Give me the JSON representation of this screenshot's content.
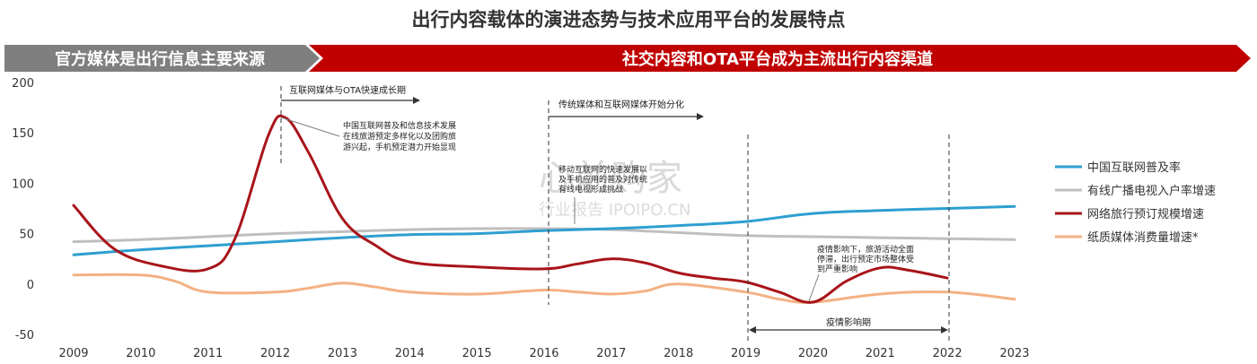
{
  "title": "出行内容载体的演进态势与技术应用平台的发展特点",
  "banner": {
    "left": "官方媒体是出行信息主要来源",
    "right": "社交内容和OTA平台成为主流出行内容渠道",
    "left_color": "#7f7f7f",
    "right_color": "#c00000"
  },
  "watermark": {
    "main": "心前购家",
    "sub": "行业报告 IPOIPO.CN"
  },
  "chart_data": {
    "type": "line",
    "x": [
      2009,
      2010,
      2011,
      2012,
      2013,
      2014,
      2015,
      2016,
      2017,
      2018,
      2019,
      2020,
      2021,
      2022,
      2023
    ],
    "ylim": [
      -50,
      200
    ],
    "y_ticks": [
      200,
      150,
      100,
      50,
      0,
      -50
    ],
    "grid": false,
    "legend_position": "right",
    "series": [
      {
        "name": "中国互联网普及率",
        "color": "#2e9fd1",
        "x": [
          2009,
          2010,
          2011,
          2012,
          2013,
          2014,
          2015,
          2016,
          2017,
          2018,
          2019,
          2020,
          2021,
          2022,
          2023
        ],
        "values": [
          29,
          34,
          38,
          42,
          46,
          49,
          50,
          53,
          55,
          58,
          62,
          70,
          73,
          75,
          77
        ]
      },
      {
        "name": "有线广播电视入户率增速",
        "color": "#bfbfbf",
        "x": [
          2009,
          2010,
          2011,
          2012,
          2013,
          2014,
          2015,
          2016,
          2017,
          2018,
          2019,
          2020,
          2021,
          2022,
          2023
        ],
        "values": [
          42,
          44,
          47,
          50,
          52,
          54,
          55,
          55,
          54,
          51,
          48,
          47,
          46,
          45,
          44
        ]
      },
      {
        "name": "网络旅行预订规模增速",
        "color": "#a8141a",
        "x": [
          2009,
          2009.6,
          2010.3,
          2011,
          2011.4,
          2011.9,
          2012.15,
          2012.5,
          2013,
          2013.5,
          2014,
          2015,
          2016,
          2016.5,
          2017,
          2017.5,
          2018,
          2018.5,
          2019,
          2019.5,
          2020,
          2020.5,
          2021,
          2021.4,
          2022
        ],
        "values": [
          78,
          35,
          18,
          15,
          45,
          148,
          165,
          130,
          65,
          38,
          22,
          17,
          15,
          20,
          25,
          21,
          11,
          6,
          2,
          -8,
          -18,
          3,
          16,
          14,
          6
        ]
      },
      {
        "name": "纸质媒体消费量增速*",
        "color": "#f4b183",
        "x": [
          2009,
          2010,
          2010.5,
          2011,
          2012,
          2012.5,
          2013,
          2013.5,
          2014,
          2015,
          2016,
          2016.5,
          2017,
          2017.5,
          2018,
          2019,
          2019.5,
          2020,
          2021,
          2022,
          2023
        ],
        "values": [
          9,
          9,
          3,
          -8,
          -8,
          -4,
          1,
          -3,
          -8,
          -10,
          -6,
          -8,
          -10,
          -7,
          0,
          -8,
          -15,
          -18,
          -10,
          -8,
          -15
        ]
      }
    ],
    "annotations": [
      {
        "text": "互联网媒体与OTA快速成长期",
        "kind": "arrow"
      },
      {
        "text": "传统媒体和互联网媒体开始分化",
        "kind": "arrow"
      },
      {
        "lines": [
          "中国互联网普及和信息技术发展",
          "在线旅游预定多样化以及团购旅",
          "游兴起，手机预定潜力开始显现"
        ],
        "kind": "callout"
      },
      {
        "lines": [
          "移动互联网的快速发展以",
          "及手机应用的普及对传统",
          "有线电视形成挑战"
        ],
        "kind": "callout"
      },
      {
        "lines": [
          "疫情影响下，旅游活动全面",
          "停滞，出行预定市场整体受",
          "到严重影响"
        ],
        "kind": "callout"
      },
      {
        "text": "疫情影响期",
        "kind": "period"
      }
    ]
  }
}
